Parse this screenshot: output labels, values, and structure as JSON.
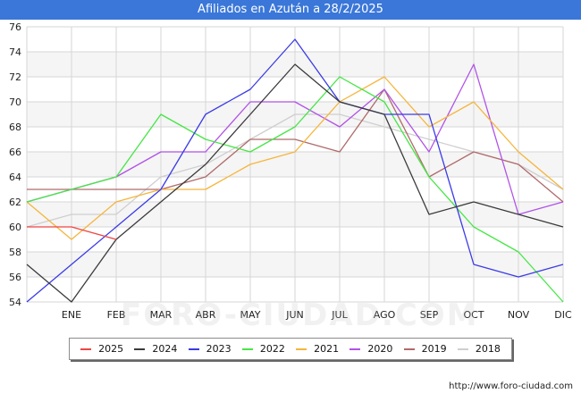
{
  "title": "Afiliados en Azután a 28/2/2025",
  "watermark": "FORO-CIUDAD.COM",
  "source": "http://www.foro-ciudad.com",
  "chart_data": {
    "type": "line",
    "title": "Afiliados en Azután a 28/2/2025",
    "xlabel": "",
    "ylabel": "",
    "categories": [
      "",
      "ENE",
      "FEB",
      "MAR",
      "ABR",
      "MAY",
      "JUN",
      "JUL",
      "AGO",
      "SEP",
      "OCT",
      "NOV",
      "DIC"
    ],
    "ylim": [
      54,
      76
    ],
    "yticks": [
      54,
      56,
      58,
      60,
      62,
      64,
      66,
      68,
      70,
      72,
      74,
      76
    ],
    "grid": true,
    "legend_position": "bottom",
    "series": [
      {
        "name": "2025",
        "color": "#ef4444",
        "values": [
          60,
          60,
          59,
          null,
          null,
          null,
          null,
          null,
          null,
          null,
          null,
          null,
          null
        ]
      },
      {
        "name": "2024",
        "color": "#3b3b3b",
        "values": [
          57,
          54,
          59,
          62,
          65,
          69,
          73,
          70,
          69,
          61,
          62,
          61,
          60
        ]
      },
      {
        "name": "2023",
        "color": "#3b3be6",
        "values": [
          54,
          57,
          60,
          63,
          69,
          71,
          75,
          70,
          69,
          69,
          57,
          56,
          57
        ]
      },
      {
        "name": "2022",
        "color": "#45e645",
        "values": [
          62,
          63,
          64,
          69,
          67,
          66,
          68,
          72,
          70,
          64,
          60,
          58,
          54
        ]
      },
      {
        "name": "2021",
        "color": "#f5b53b",
        "values": [
          62,
          59,
          62,
          63,
          63,
          65,
          66,
          70,
          72,
          68,
          70,
          66,
          63
        ]
      },
      {
        "name": "2020",
        "color": "#b152e8",
        "values": [
          62,
          63,
          64,
          66,
          66,
          70,
          70,
          68,
          71,
          66,
          73,
          61,
          62
        ]
      },
      {
        "name": "2019",
        "color": "#b06a6a",
        "values": [
          63,
          63,
          63,
          63,
          64,
          67,
          67,
          66,
          71,
          64,
          66,
          65,
          62
        ]
      },
      {
        "name": "2018",
        "color": "#cfcfcf",
        "values": [
          60,
          61,
          61,
          64,
          65,
          67,
          69,
          69,
          68,
          67,
          66,
          65,
          63
        ]
      }
    ]
  }
}
